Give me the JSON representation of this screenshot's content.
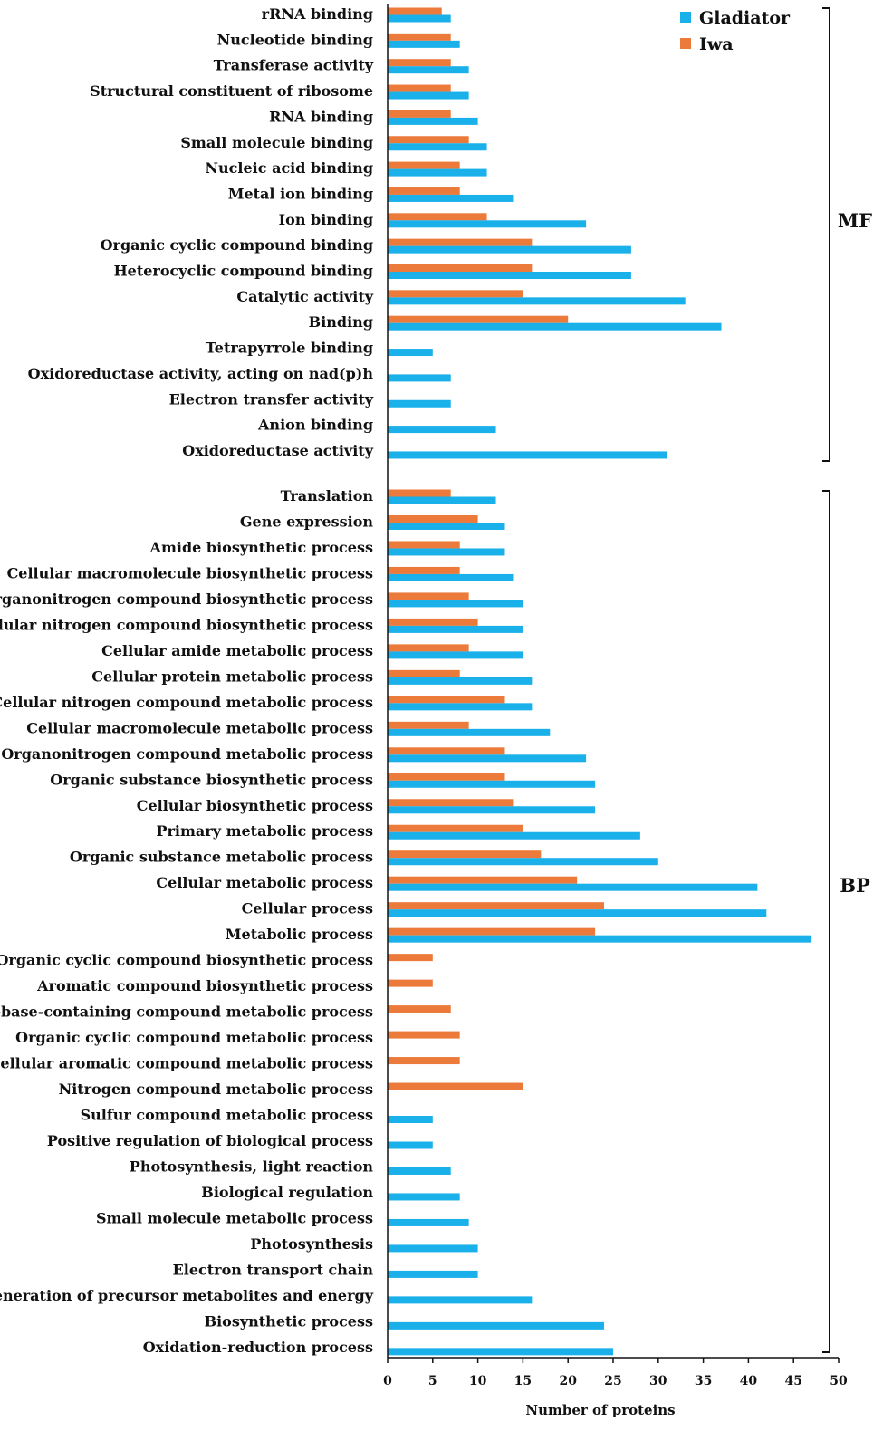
{
  "chart_data": {
    "type": "bar",
    "orientation": "horizontal",
    "xlabel": "Number of proteins",
    "xlim": [
      0,
      50
    ],
    "xticks": [
      0,
      5,
      10,
      15,
      20,
      25,
      30,
      35,
      40,
      45,
      50
    ],
    "colors": {
      "Gladiator": "#1ab0ea",
      "Iwa": "#ec7a3a"
    },
    "legend": [
      "Gladiator",
      "Iwa"
    ],
    "groups": [
      {
        "name": "MF",
        "categories": [
          {
            "label": "rRNA binding",
            "Gladiator": 7,
            "Iwa": 6
          },
          {
            "label": "Nucleotide binding",
            "Gladiator": 8,
            "Iwa": 7
          },
          {
            "label": "Transferase activity",
            "Gladiator": 9,
            "Iwa": 7
          },
          {
            "label": "Structural constituent of ribosome",
            "Gladiator": 9,
            "Iwa": 7
          },
          {
            "label": "RNA binding",
            "Gladiator": 10,
            "Iwa": 7
          },
          {
            "label": "Small molecule binding",
            "Gladiator": 11,
            "Iwa": 9
          },
          {
            "label": "Nucleic acid binding",
            "Gladiator": 11,
            "Iwa": 8
          },
          {
            "label": "Metal ion binding",
            "Gladiator": 14,
            "Iwa": 8
          },
          {
            "label": "Ion binding",
            "Gladiator": 22,
            "Iwa": 11
          },
          {
            "label": "Organic cyclic compound binding",
            "Gladiator": 27,
            "Iwa": 16
          },
          {
            "label": "Heterocyclic compound binding",
            "Gladiator": 27,
            "Iwa": 16
          },
          {
            "label": "Catalytic activity",
            "Gladiator": 33,
            "Iwa": 15
          },
          {
            "label": "Binding",
            "Gladiator": 37,
            "Iwa": 20
          },
          {
            "label": "Tetrapyrrole binding",
            "Gladiator": 5,
            "Iwa": null
          },
          {
            "label": "Oxidoreductase activity, acting on nad(p)h",
            "Gladiator": 7,
            "Iwa": null
          },
          {
            "label": "Electron transfer activity",
            "Gladiator": 7,
            "Iwa": null
          },
          {
            "label": "Anion binding",
            "Gladiator": 12,
            "Iwa": null
          },
          {
            "label": "Oxidoreductase activity",
            "Gladiator": 31,
            "Iwa": null
          }
        ]
      },
      {
        "name": "BP",
        "categories": [
          {
            "label": "Translation",
            "Gladiator": 12,
            "Iwa": 7
          },
          {
            "label": "Gene expression",
            "Gladiator": 13,
            "Iwa": 10
          },
          {
            "label": "Amide biosynthetic process",
            "Gladiator": 13,
            "Iwa": 8
          },
          {
            "label": "Cellular macromolecule biosynthetic process",
            "Gladiator": 14,
            "Iwa": 8
          },
          {
            "label": "Organonitrogen compound biosynthetic process",
            "Gladiator": 15,
            "Iwa": 9
          },
          {
            "label": "Cellular nitrogen compound biosynthetic process",
            "Gladiator": 15,
            "Iwa": 10
          },
          {
            "label": "Cellular amide metabolic process",
            "Gladiator": 15,
            "Iwa": 9
          },
          {
            "label": "Cellular protein metabolic process",
            "Gladiator": 16,
            "Iwa": 8
          },
          {
            "label": "Cellular nitrogen compound metabolic process",
            "Gladiator": 16,
            "Iwa": 13
          },
          {
            "label": "Cellular macromolecule metabolic process",
            "Gladiator": 18,
            "Iwa": 9
          },
          {
            "label": "Organonitrogen compound metabolic process",
            "Gladiator": 22,
            "Iwa": 13
          },
          {
            "label": "Organic substance biosynthetic process",
            "Gladiator": 23,
            "Iwa": 13
          },
          {
            "label": "Cellular biosynthetic process",
            "Gladiator": 23,
            "Iwa": 14
          },
          {
            "label": "Primary metabolic process",
            "Gladiator": 28,
            "Iwa": 15
          },
          {
            "label": "Organic substance metabolic process",
            "Gladiator": 30,
            "Iwa": 17
          },
          {
            "label": "Cellular metabolic process",
            "Gladiator": 41,
            "Iwa": 21
          },
          {
            "label": "Cellular process",
            "Gladiator": 42,
            "Iwa": 24
          },
          {
            "label": "Metabolic process",
            "Gladiator": 47,
            "Iwa": 23
          },
          {
            "label": "Organic cyclic compound biosynthetic process",
            "Gladiator": null,
            "Iwa": 5
          },
          {
            "label": "Aromatic compound biosynthetic process",
            "Gladiator": null,
            "Iwa": 5
          },
          {
            "label": "Nucleobase-containing compound metabolic process",
            "Gladiator": null,
            "Iwa": 7
          },
          {
            "label": "Organic cyclic compound metabolic process",
            "Gladiator": null,
            "Iwa": 8
          },
          {
            "label": "Cellular aromatic compound metabolic process",
            "Gladiator": null,
            "Iwa": 8
          },
          {
            "label": "Nitrogen compound metabolic process",
            "Gladiator": null,
            "Iwa": 15
          },
          {
            "label": "Sulfur compound metabolic process",
            "Gladiator": 5,
            "Iwa": null
          },
          {
            "label": "Positive regulation of biological process",
            "Gladiator": 5,
            "Iwa": null
          },
          {
            "label": "Photosynthesis, light reaction",
            "Gladiator": 7,
            "Iwa": null
          },
          {
            "label": "Biological regulation",
            "Gladiator": 8,
            "Iwa": null
          },
          {
            "label": "Small molecule metabolic process",
            "Gladiator": 9,
            "Iwa": null
          },
          {
            "label": "Photosynthesis",
            "Gladiator": 10,
            "Iwa": null
          },
          {
            "label": "Electron transport chain",
            "Gladiator": 10,
            "Iwa": null
          },
          {
            "label": "Generation of precursor metabolites and energy",
            "Gladiator": 16,
            "Iwa": null
          },
          {
            "label": "Biosynthetic process",
            "Gladiator": 24,
            "Iwa": null
          },
          {
            "label": "Oxidation-reduction process",
            "Gladiator": 25,
            "Iwa": null
          }
        ]
      }
    ]
  }
}
